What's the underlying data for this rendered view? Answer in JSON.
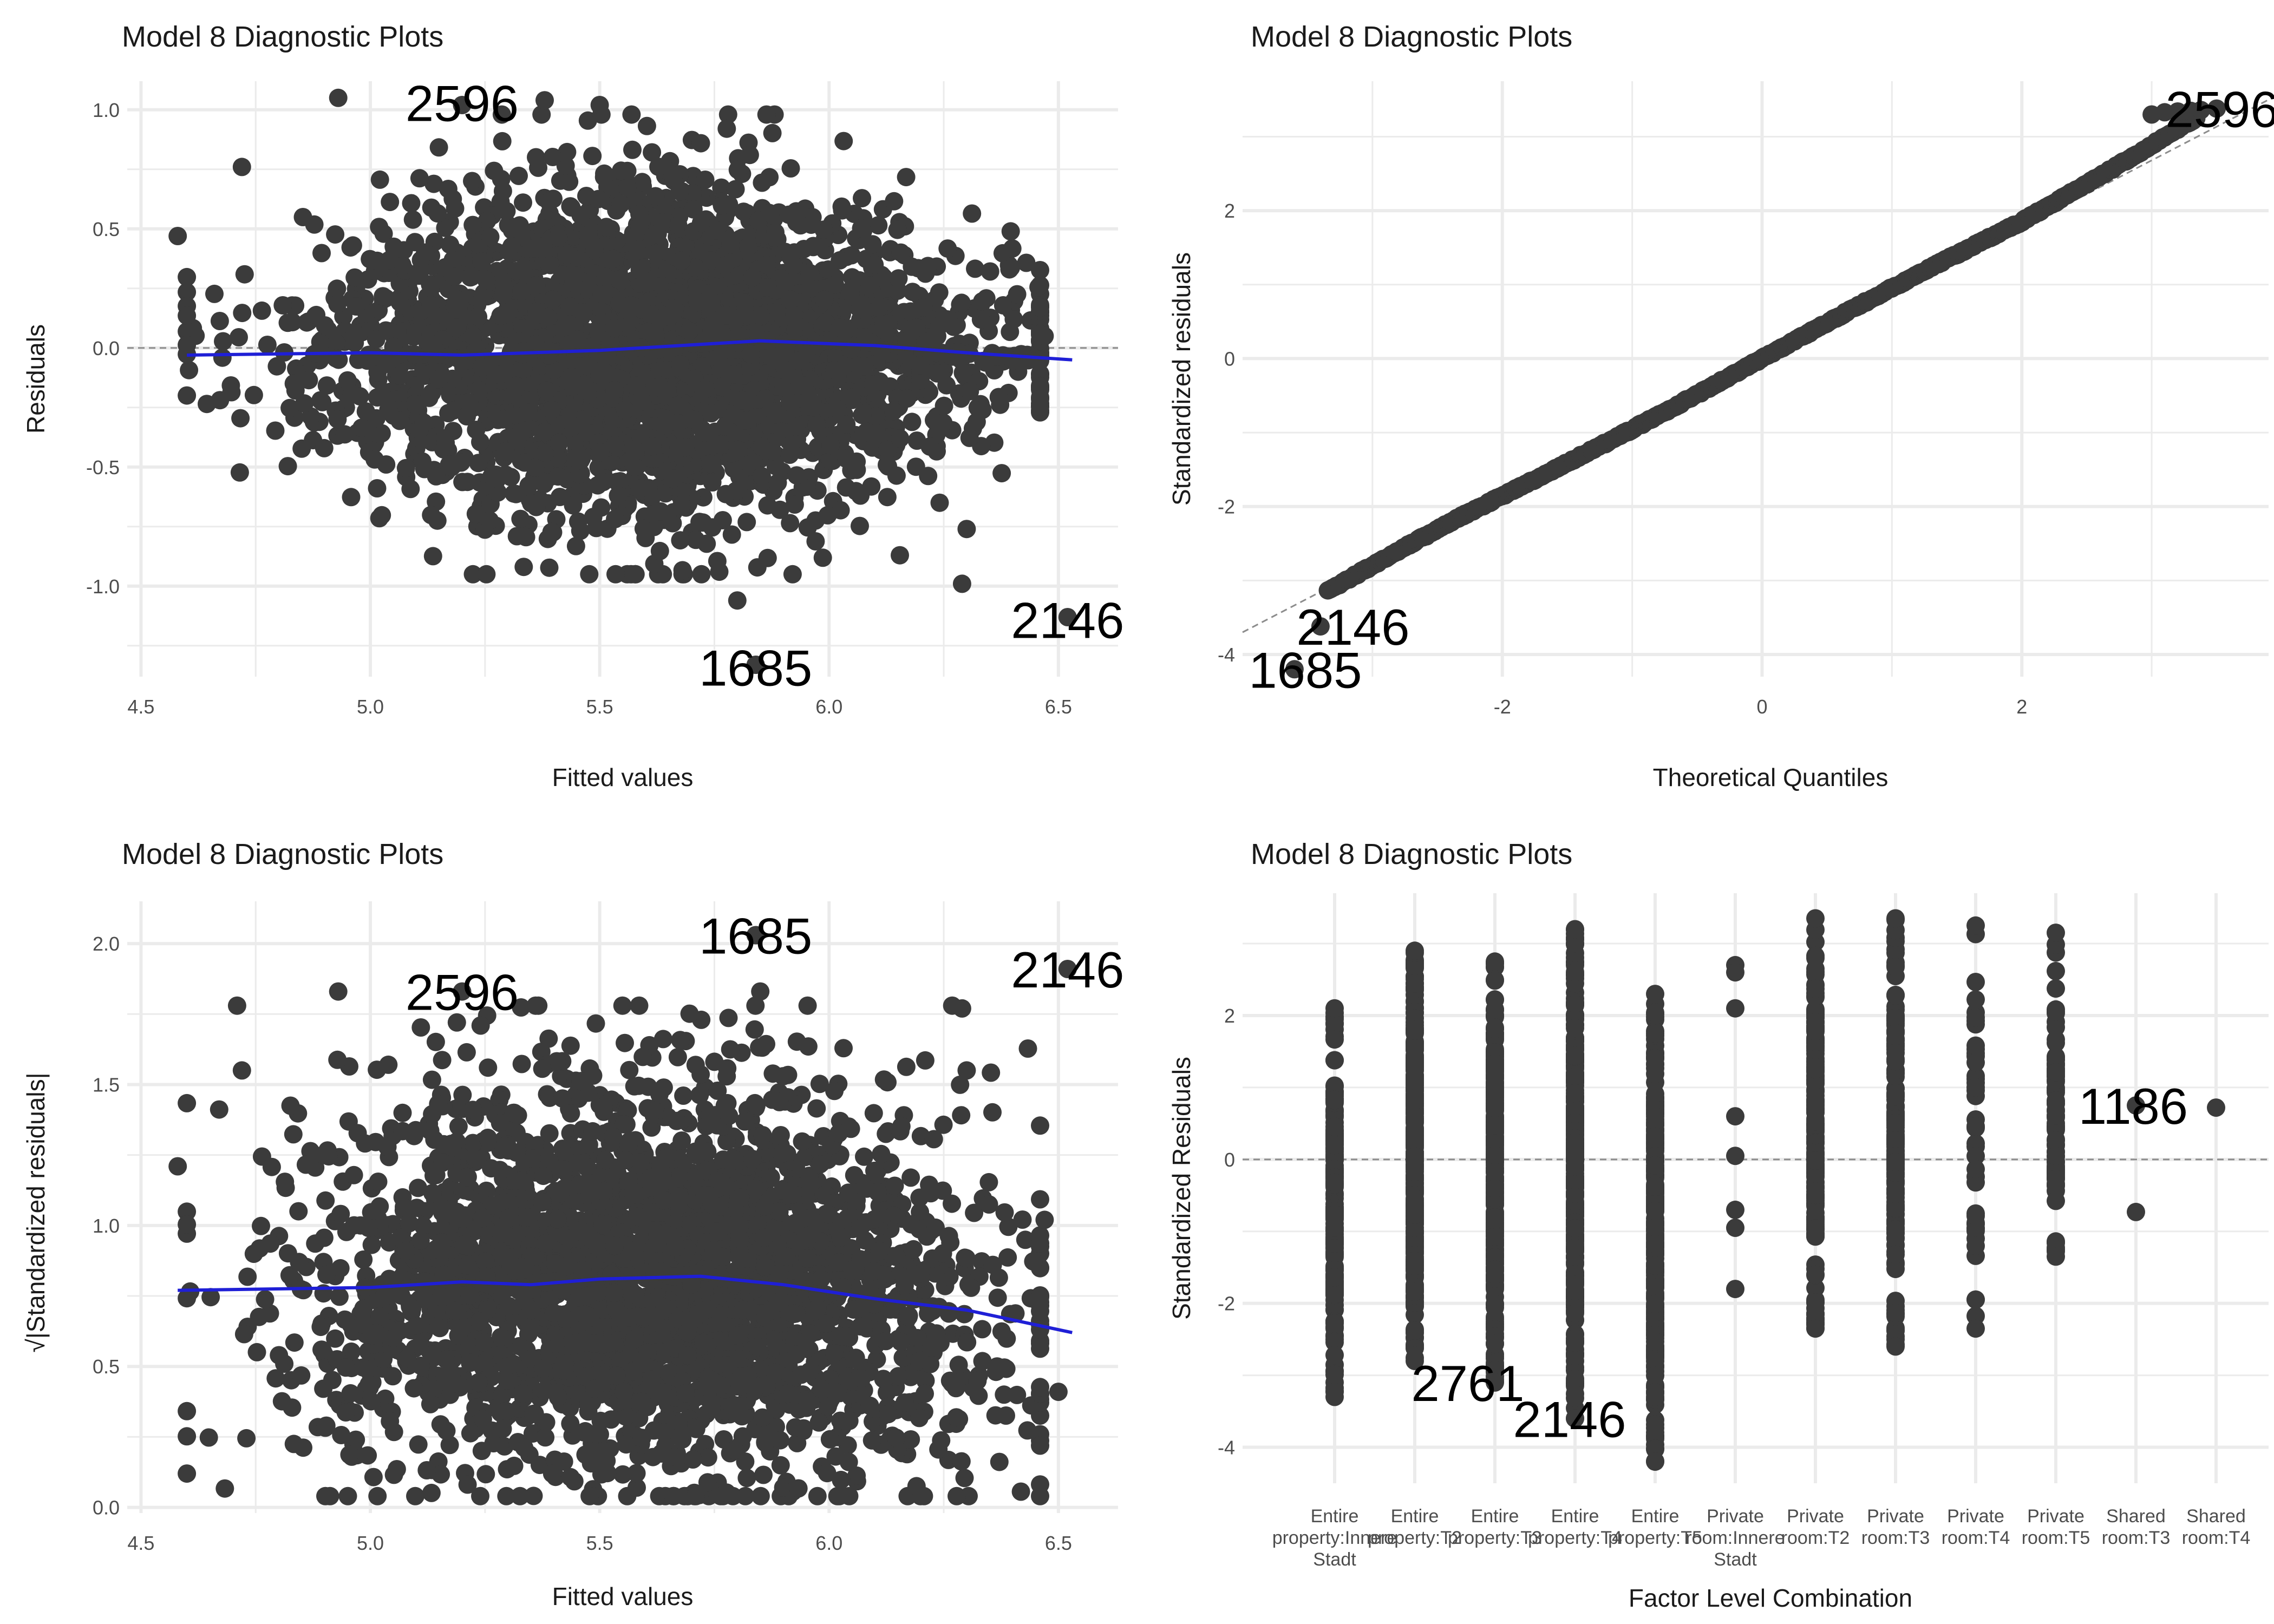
{
  "colors": {
    "points": "#3b3b3b",
    "smooth": "#1f1fd6",
    "refline": "#8c8c8c",
    "grid": "#ebebeb",
    "background": "#ffffff"
  },
  "chart_data": [
    {
      "type": "scatter",
      "title": "Model 8 Diagnostic Plots",
      "xlabel": "Fitted values",
      "ylabel": "Residuals",
      "xlim": [
        4.47,
        6.63
      ],
      "ylim": [
        -1.38,
        1.12
      ],
      "xticks": [
        "4.5",
        "5.0",
        "5.5",
        "6.0",
        "6.5"
      ],
      "yticks": [
        "-1.0",
        "-0.5",
        "0.0",
        "0.5",
        "1.0"
      ],
      "xtick_values": [
        4.5,
        5.0,
        5.5,
        6.0,
        6.5
      ],
      "ytick_values": [
        -1.0,
        -0.5,
        0.0,
        0.5,
        1.0
      ],
      "reference_line": {
        "type": "horizontal",
        "y": 0,
        "style": "dashed"
      },
      "smooth_line": {
        "x": [
          4.6,
          5.0,
          5.2,
          5.5,
          5.85,
          6.1,
          6.3,
          6.53
        ],
        "y": [
          -0.03,
          -0.02,
          -0.03,
          -0.01,
          0.03,
          0.01,
          -0.02,
          -0.05
        ]
      },
      "points": {
        "count": 3000,
        "x_range": [
          4.58,
          6.53
        ],
        "y_range": [
          -1.33,
          1.06
        ],
        "highlight": [
          {
            "x": 4.58,
            "y": 0.47
          },
          {
            "x": 4.72,
            "y": 0.76
          },
          {
            "x": 4.93,
            "y": 1.05
          },
          {
            "x": 5.2,
            "y": 1.02
          },
          {
            "x": 5.38,
            "y": 1.04
          },
          {
            "x": 5.5,
            "y": 1.02
          },
          {
            "x": 5.8,
            "y": -1.06
          },
          {
            "x": 5.84,
            "y": -1.33
          },
          {
            "x": 6.29,
            "y": -0.99
          },
          {
            "x": 6.3,
            "y": -0.76
          },
          {
            "x": 6.52,
            "y": -1.13
          },
          {
            "x": 6.47,
            "y": 0.05
          }
        ]
      },
      "annotations": [
        {
          "label": "2596",
          "x": 5.2,
          "y": 1.03
        },
        {
          "label": "1685",
          "x": 5.84,
          "y": -1.34
        },
        {
          "label": "2146",
          "x": 6.52,
          "y": -1.14
        }
      ]
    },
    {
      "type": "scatter",
      "title": "Model 8 Diagnostic Plots",
      "xlabel": "Theoretical Quantiles",
      "ylabel": "Standardized residuals",
      "xlim": [
        -4.0,
        3.9
      ],
      "ylim": [
        -4.3,
        3.75
      ],
      "xticks": [
        "-2",
        "0",
        "2"
      ],
      "yticks": [
        "-4",
        "-2",
        "0",
        "2"
      ],
      "xtick_values": [
        -2,
        0,
        2
      ],
      "ytick_values": [
        -4,
        -2,
        0,
        2
      ],
      "reference_line": {
        "type": "diagonal",
        "x": [
          -4.0,
          3.9
        ],
        "y": [
          -3.7,
          3.5
        ],
        "style": "dashed"
      },
      "points": {
        "count": 3000,
        "x_range": [
          -3.6,
          3.6
        ],
        "y_range": [
          -4.2,
          3.38
        ]
      },
      "annotations": [
        {
          "label": "2596",
          "x": 3.5,
          "y": 3.38
        },
        {
          "label": "2146",
          "x": -3.4,
          "y": -3.62
        },
        {
          "label": "1685",
          "x": -3.6,
          "y": -4.2
        }
      ]
    },
    {
      "type": "scatter",
      "title": "Model 8 Diagnostic Plots",
      "xlabel": "Fitted values",
      "ylabel": "√|Standardized residuals|",
      "xlim": [
        4.47,
        6.63
      ],
      "ylim": [
        -0.02,
        2.15
      ],
      "xticks": [
        "4.5",
        "5.0",
        "5.5",
        "6.0",
        "6.5"
      ],
      "yticks": [
        "0.0",
        "0.5",
        "1.0",
        "1.5",
        "2.0"
      ],
      "xtick_values": [
        4.5,
        5.0,
        5.5,
        6.0,
        6.5
      ],
      "ytick_values": [
        0.0,
        0.5,
        1.0,
        1.5,
        2.0
      ],
      "smooth_line": {
        "x": [
          4.58,
          5.0,
          5.2,
          5.35,
          5.5,
          5.72,
          5.9,
          6.1,
          6.3,
          6.53
        ],
        "y": [
          0.77,
          0.78,
          0.8,
          0.79,
          0.81,
          0.82,
          0.79,
          0.74,
          0.7,
          0.62
        ]
      },
      "points": {
        "count": 3000,
        "x_range": [
          4.58,
          6.53
        ],
        "y_range": [
          0.03,
          2.03
        ],
        "highlight": [
          {
            "x": 4.58,
            "y": 1.21
          },
          {
            "x": 4.72,
            "y": 1.55
          },
          {
            "x": 4.93,
            "y": 1.83
          },
          {
            "x": 5.2,
            "y": 1.83
          },
          {
            "x": 5.84,
            "y": 2.03
          },
          {
            "x": 5.85,
            "y": 1.83
          },
          {
            "x": 6.29,
            "y": 1.77
          },
          {
            "x": 6.3,
            "y": 1.55
          },
          {
            "x": 6.52,
            "y": 1.91
          },
          {
            "x": 6.47,
            "y": 1.02
          },
          {
            "x": 6.5,
            "y": 0.41
          },
          {
            "x": 4.6,
            "y": 0.12
          }
        ]
      },
      "annotations": [
        {
          "label": "2596",
          "x": 5.2,
          "y": 1.83
        },
        {
          "label": "1685",
          "x": 5.84,
          "y": 2.03
        },
        {
          "label": "2146",
          "x": 6.52,
          "y": 1.91
        }
      ]
    },
    {
      "type": "scatter",
      "title": "Model 8 Diagnostic Plots",
      "xlabel": "Factor Level Combination",
      "ylabel": "Standardized Residuals",
      "ylim": [
        -4.5,
        3.7
      ],
      "yticks": [
        "-4",
        "-2",
        "0",
        "2"
      ],
      "ytick_values": [
        -4,
        -2,
        0,
        2
      ],
      "reference_line": {
        "type": "horizontal",
        "y": 0,
        "style": "dashed"
      },
      "categories": [
        {
          "label_lines": [
            "Entire",
            "property:Innere",
            "Stadt"
          ],
          "min": -3.3,
          "max": 2.1,
          "n": 170
        },
        {
          "label_lines": [
            "Entire",
            "property:T2"
          ],
          "min": -2.8,
          "max": 2.9,
          "n": 320
        },
        {
          "label_lines": [
            "Entire",
            "property:T3"
          ],
          "min": -3.1,
          "max": 2.75,
          "n": 300
        },
        {
          "label_lines": [
            "Entire",
            "property:T4"
          ],
          "min": -3.6,
          "max": 3.2,
          "n": 300
        },
        {
          "label_lines": [
            "Entire",
            "property:T5"
          ],
          "min": -4.2,
          "max": 2.3,
          "n": 240
        },
        {
          "label_lines": [
            "Private",
            "room:Innere",
            "Stadt"
          ],
          "min": -1.8,
          "max": 2.7,
          "n": 8,
          "values": [
            2.7,
            2.6,
            2.1,
            0.6,
            0.05,
            -0.7,
            -0.95,
            -1.8
          ]
        },
        {
          "label_lines": [
            "Private",
            "room:T2"
          ],
          "min": -2.35,
          "max": 3.35,
          "n": 170
        },
        {
          "label_lines": [
            "Private",
            "room:T3"
          ],
          "min": -2.6,
          "max": 3.35,
          "n": 150
        },
        {
          "label_lines": [
            "Private",
            "room:T4"
          ],
          "min": -2.35,
          "max": 3.25,
          "n": 40
        },
        {
          "label_lines": [
            "Private",
            "room:T5"
          ],
          "min": -1.35,
          "max": 3.15,
          "n": 80
        },
        {
          "label_lines": [
            "Shared",
            "room:T3"
          ],
          "min": -0.73,
          "max": 0.75,
          "n": 2,
          "values": [
            0.75,
            -0.73
          ]
        },
        {
          "label_lines": [
            "Shared",
            "room:T4"
          ],
          "min": 0.72,
          "max": 0.72,
          "n": 1,
          "values": [
            0.72
          ]
        }
      ],
      "annotations": [
        {
          "label": "1186",
          "category": 10,
          "y": 0.75
        },
        {
          "label": "2761",
          "category": 2,
          "y": -3.1
        },
        {
          "label": "2146",
          "category": 3,
          "y": -3.6
        }
      ]
    }
  ]
}
